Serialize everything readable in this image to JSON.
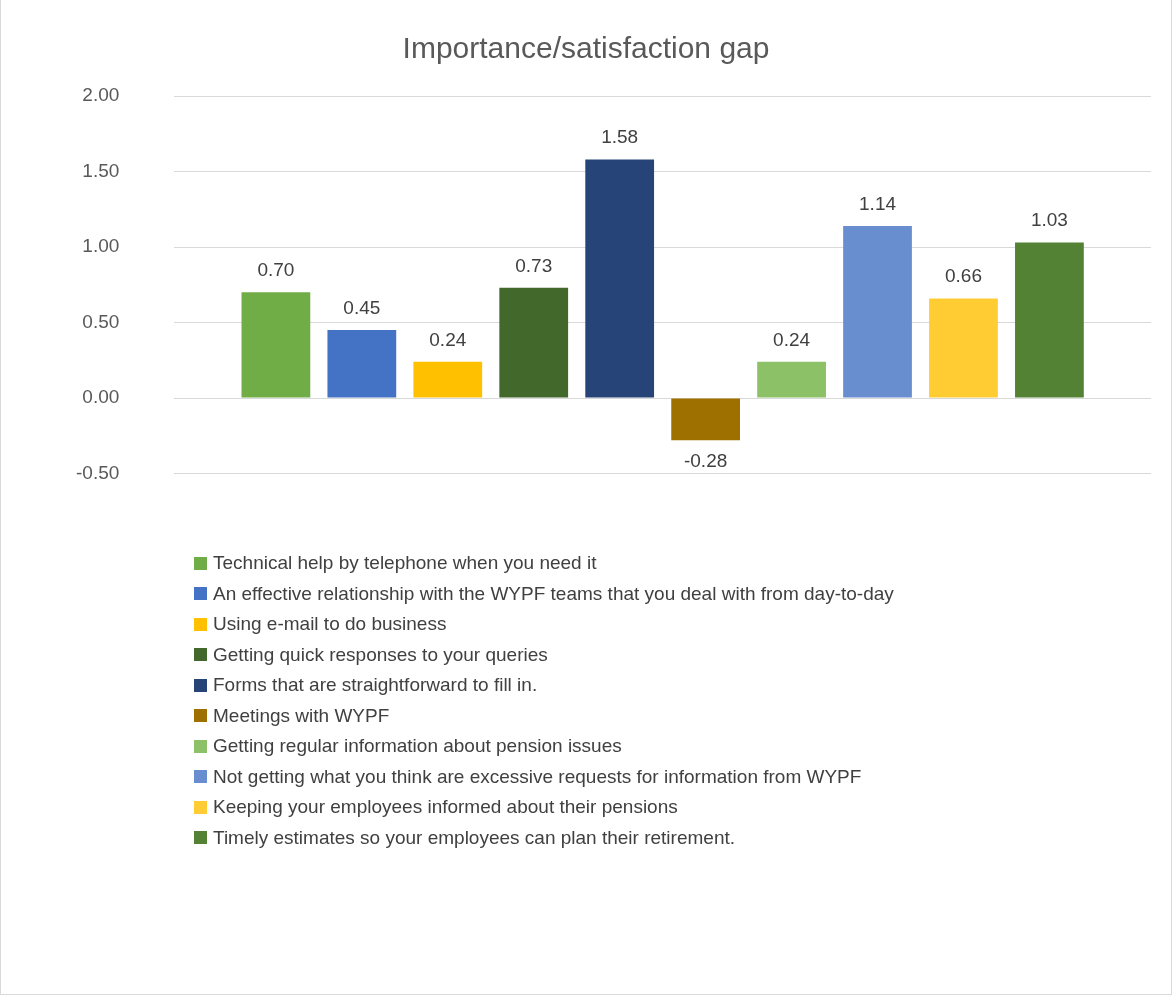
{
  "chart_data": {
    "type": "bar",
    "title": "Importance/satisfaction gap",
    "categories": [
      null
    ],
    "series": [
      {
        "name": "Technical help by telephone when you need it",
        "color": "#70ad47",
        "values": [
          0.7
        ],
        "value_labels": [
          "0.70"
        ]
      },
      {
        "name": "An effective relationship with the WYPF teams that you deal with from day-to-day",
        "color": "#4472c4",
        "values": [
          0.45
        ],
        "value_labels": [
          "0.45"
        ]
      },
      {
        "name": "Using e-mail to do business",
        "color": "#ffc000",
        "values": [
          0.24
        ],
        "value_labels": [
          "0.24"
        ]
      },
      {
        "name": "Getting quick responses to your queries",
        "color": "#43682b",
        "values": [
          0.73
        ],
        "value_labels": [
          "0.73"
        ]
      },
      {
        "name": "Forms that are straightforward to fill in.",
        "color": "#264478",
        "values": [
          1.58
        ],
        "value_labels": [
          "1.58"
        ]
      },
      {
        "name": "Meetings with WYPF",
        "color": "#9e7000",
        "values": [
          -0.28
        ],
        "value_labels": [
          "-0.28"
        ]
      },
      {
        "name": "Getting regular information about pension issues",
        "color": "#8cc168",
        "values": [
          0.24
        ],
        "value_labels": [
          "0.24"
        ]
      },
      {
        "name": "Not getting what you think are excessive requests for information from WYPF",
        "color": "#698ed0",
        "values": [
          1.14
        ],
        "value_labels": [
          "1.14"
        ]
      },
      {
        "name": "Keeping your employees informed about their pensions",
        "color": "#ffcd33",
        "values": [
          0.66
        ],
        "value_labels": [
          "0.66"
        ]
      },
      {
        "name": "Timely estimates so your employees can plan their retirement.",
        "color": "#548235",
        "values": [
          1.03
        ],
        "value_labels": [
          "1.03"
        ]
      }
    ],
    "ylim": [
      -0.5,
      2
    ],
    "yticks": [
      {
        "value": -0.5,
        "label": "-0.50"
      },
      {
        "value": 0,
        "label": "0.00"
      },
      {
        "value": 0.5,
        "label": "0.50"
      },
      {
        "value": 1,
        "label": "1.00"
      },
      {
        "value": 1.5,
        "label": "1.50"
      },
      {
        "value": 2,
        "label": "2.00"
      }
    ],
    "grid": "y",
    "legend": "bottom"
  }
}
